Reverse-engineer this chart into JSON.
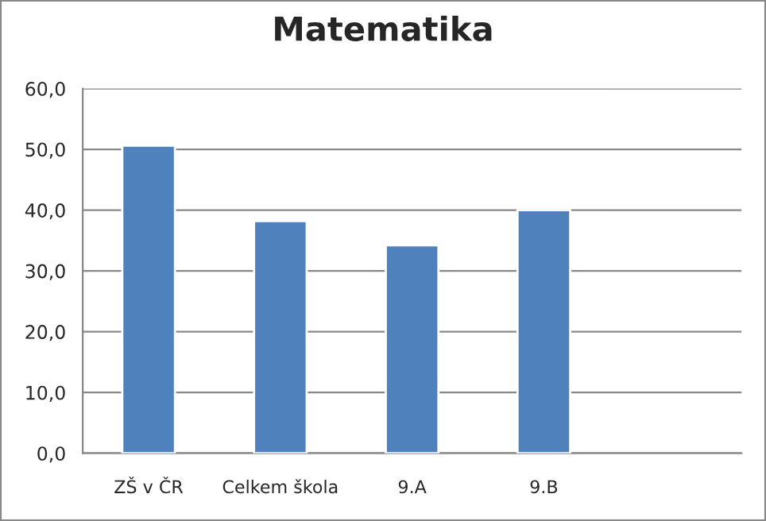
{
  "chart_data": {
    "type": "bar",
    "title": "Matematika",
    "categories": [
      "ZŠ v ČR",
      "Celkem škola",
      "9.A",
      "9.B",
      null
    ],
    "values": [
      50.6,
      38.2,
      34.2,
      40.0,
      null
    ],
    "color": "#4f81bd",
    "ylim": [
      0,
      60
    ],
    "yticks": [
      {
        "value": 0,
        "label": "0,0"
      },
      {
        "value": 10,
        "label": "10,0"
      },
      {
        "value": 20,
        "label": "20,0"
      },
      {
        "value": 30,
        "label": "30,0"
      },
      {
        "value": 40,
        "label": "40,0"
      },
      {
        "value": 50,
        "label": "50,0"
      },
      {
        "value": 60,
        "label": "60,0"
      }
    ],
    "grid": "y",
    "legend": false
  }
}
